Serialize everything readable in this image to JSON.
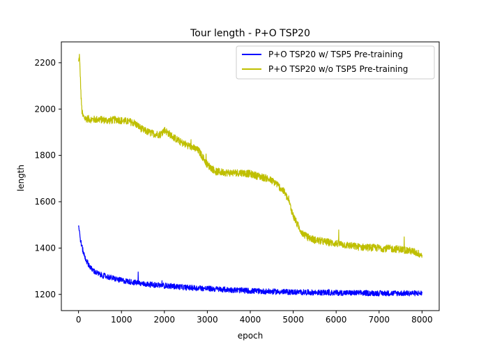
{
  "chart_data": {
    "type": "line",
    "title": "Tour length - P+O TSP20",
    "xlabel": "epoch",
    "ylabel": "length",
    "xlim": [
      -400,
      8400
    ],
    "ylim": [
      1130,
      2290
    ],
    "xticks": [
      0,
      1000,
      2000,
      3000,
      4000,
      5000,
      6000,
      7000,
      8000
    ],
    "yticks": [
      1200,
      1400,
      1600,
      1800,
      2000,
      2200
    ],
    "grid": false,
    "legend_position": "top-right",
    "series": [
      {
        "name": "P+O TSP20 w/ TSP5 Pre-training",
        "color": "#0000ff",
        "noise": 12,
        "x": [
          0,
          20,
          50,
          100,
          150,
          200,
          300,
          400,
          500,
          600,
          700,
          800,
          1000,
          1200,
          1500,
          2000,
          2500,
          3000,
          3500,
          4000,
          4500,
          5000,
          5500,
          6000,
          6500,
          7000,
          7500,
          8000
        ],
        "y": [
          1500,
          1470,
          1430,
          1390,
          1360,
          1340,
          1310,
          1295,
          1285,
          1280,
          1275,
          1270,
          1260,
          1255,
          1245,
          1238,
          1230,
          1225,
          1220,
          1215,
          1212,
          1210,
          1208,
          1207,
          1206,
          1205,
          1205,
          1205
        ]
      },
      {
        "name": "P+O TSP20 w/o TSP5 Pre-training",
        "color": "#bfbf00",
        "noise": 16,
        "x": [
          0,
          20,
          40,
          60,
          80,
          100,
          150,
          300,
          500,
          700,
          900,
          1000,
          1200,
          1300,
          1500,
          1700,
          1900,
          2000,
          2200,
          2400,
          2600,
          2800,
          2900,
          3000,
          3200,
          3500,
          3800,
          4000,
          4200,
          4400,
          4600,
          4800,
          4900,
          5000,
          5100,
          5200,
          5300,
          5500,
          5800,
          6000,
          6500,
          7000,
          7500,
          7800,
          8000
        ],
        "y": [
          2200,
          2230,
          2150,
          2050,
          1990,
          1970,
          1960,
          1955,
          1955,
          1950,
          1955,
          1950,
          1945,
          1940,
          1910,
          1895,
          1890,
          1910,
          1880,
          1855,
          1840,
          1820,
          1790,
          1760,
          1730,
          1725,
          1725,
          1720,
          1710,
          1700,
          1680,
          1640,
          1600,
          1540,
          1500,
          1470,
          1450,
          1435,
          1425,
          1420,
          1405,
          1400,
          1395,
          1385,
          1370
        ]
      }
    ]
  }
}
